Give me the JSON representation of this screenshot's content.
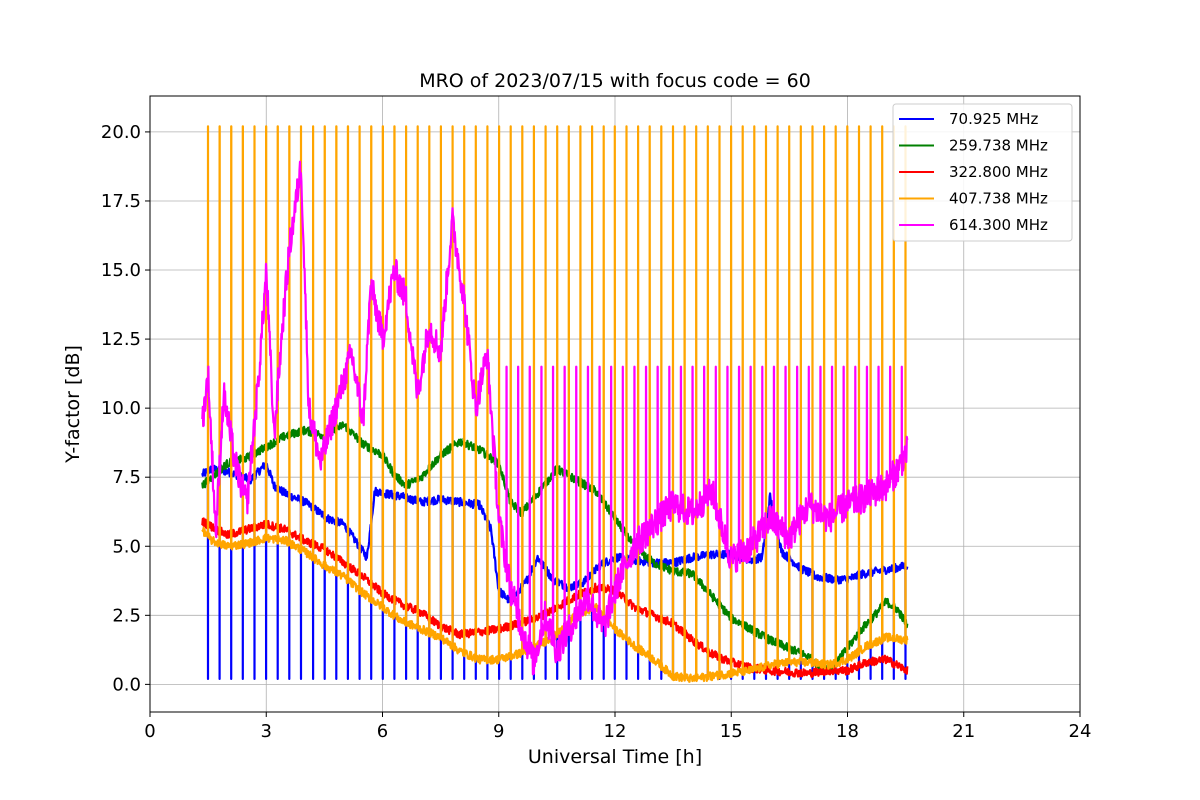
{
  "chart_data": {
    "type": "line",
    "title": "MRO of 2023/07/15 with focus code = 60",
    "xlabel": "Universal Time [h]",
    "ylabel": "Y-factor [dB]",
    "xlim": [
      0,
      24
    ],
    "ylim": [
      -1.0,
      21.3
    ],
    "x_ticks": [
      "0",
      "3",
      "6",
      "9",
      "12",
      "15",
      "18",
      "21",
      "24"
    ],
    "y_ticks": [
      "0.0",
      "2.5",
      "5.0",
      "7.5",
      "10.0",
      "12.5",
      "15.0",
      "17.5",
      "20.0"
    ],
    "grid": true,
    "legend_position": "top-right",
    "spike_interval_h": 0.3,
    "series": [
      {
        "name": " 70.925 MHz",
        "color": "#0000ff",
        "x": [
          1.35,
          1.6,
          2,
          2.6,
          3,
          3.2,
          3.5,
          4,
          4.6,
          5,
          5.3,
          5.6,
          5.8,
          6.1,
          6.5,
          7,
          7.5,
          8,
          8.5,
          8.8,
          9,
          9.3,
          9.7,
          10,
          10.4,
          10.8,
          11.2,
          11.6,
          12,
          12.5,
          13,
          13.5,
          14,
          14.5,
          15,
          15.5,
          15.8,
          16,
          16.3,
          16.8,
          17.2,
          17.7,
          18,
          18.4,
          18.8,
          19.2,
          19.55
        ],
        "y": [
          7.6,
          7.8,
          7.7,
          7.4,
          8.0,
          7.2,
          6.9,
          6.6,
          6.0,
          5.8,
          5.2,
          4.6,
          7.0,
          6.9,
          6.8,
          6.6,
          6.7,
          6.6,
          6.5,
          5.6,
          3.4,
          3.0,
          3.7,
          4.6,
          3.8,
          3.5,
          3.7,
          4.3,
          4.6,
          4.5,
          4.4,
          4.4,
          4.6,
          4.7,
          4.7,
          4.5,
          4.6,
          6.8,
          4.8,
          4.2,
          3.9,
          3.8,
          3.8,
          4.0,
          4.1,
          4.2,
          4.3
        ],
        "spike_low": 0.2,
        "spike_start": 1.5,
        "spike_end": 19.5
      },
      {
        "name": "259.738 MHz",
        "color": "#008000",
        "x": [
          1.35,
          1.6,
          2,
          2.5,
          3,
          3.5,
          4,
          4.5,
          5,
          5.5,
          6,
          6.3,
          6.6,
          7,
          7.5,
          8,
          8.5,
          9,
          9.3,
          9.6,
          10,
          10.5,
          11,
          11.5,
          12,
          12.5,
          13,
          13.5,
          14,
          14.5,
          15,
          15.5,
          16,
          16.5,
          17,
          17.3,
          17.6,
          18,
          18.3,
          18.7,
          19,
          19.3,
          19.55
        ],
        "y": [
          7.2,
          7.5,
          8.0,
          8.2,
          8.6,
          9.0,
          9.2,
          9.0,
          9.4,
          8.7,
          8.3,
          7.6,
          7.2,
          7.5,
          8.3,
          8.8,
          8.5,
          8.0,
          6.6,
          6.2,
          6.9,
          7.8,
          7.4,
          7.0,
          6.0,
          5.0,
          4.4,
          4.1,
          4.0,
          3.2,
          2.4,
          2.0,
          1.6,
          1.3,
          1.0,
          0.6,
          0.6,
          1.3,
          1.9,
          2.5,
          3.0,
          2.7,
          2.1
        ],
        "spike_low": null,
        "spike_start": null,
        "spike_end": null
      },
      {
        "name": "322.800 MHz",
        "color": "#ff0000",
        "x": [
          1.35,
          1.6,
          2,
          2.5,
          3,
          3.5,
          4,
          4.5,
          5,
          5.5,
          6,
          6.5,
          7,
          7.5,
          8,
          8.5,
          9,
          9.5,
          10,
          10.5,
          11,
          11.5,
          12,
          12.5,
          13,
          13.5,
          14,
          14.5,
          15,
          15.5,
          16,
          16.5,
          17,
          17.5,
          18,
          18.5,
          19,
          19.55
        ],
        "y": [
          5.9,
          5.7,
          5.4,
          5.6,
          5.8,
          5.6,
          5.2,
          4.9,
          4.4,
          3.9,
          3.3,
          2.9,
          2.6,
          2.1,
          1.8,
          1.9,
          2.0,
          2.2,
          2.4,
          2.8,
          3.2,
          3.5,
          3.4,
          2.8,
          2.5,
          2.2,
          1.6,
          1.1,
          0.8,
          0.6,
          0.5,
          0.45,
          0.4,
          0.5,
          0.5,
          0.8,
          0.9,
          0.5
        ],
        "spike_low": null,
        "spike_start": null,
        "spike_end": null
      },
      {
        "name": "407.738 MHz",
        "color": "#ffa500",
        "x": [
          1.35,
          1.6,
          2,
          2.5,
          3,
          3.5,
          4,
          4.5,
          5,
          5.5,
          6,
          6.5,
          7,
          7.5,
          8,
          8.5,
          9,
          9.5,
          10,
          10.5,
          11,
          11.5,
          12,
          12.5,
          13,
          13.5,
          14,
          14.5,
          15,
          15.5,
          16,
          16.5,
          17,
          17.5,
          18,
          18.5,
          19,
          19.55
        ],
        "y": [
          5.6,
          5.2,
          5.0,
          5.1,
          5.3,
          5.2,
          4.8,
          4.3,
          3.9,
          3.3,
          2.8,
          2.3,
          2.0,
          1.7,
          1.2,
          0.9,
          0.9,
          1.1,
          1.4,
          1.8,
          2.5,
          2.8,
          2.0,
          1.4,
          0.9,
          0.3,
          0.2,
          0.3,
          0.4,
          0.5,
          0.7,
          0.8,
          0.8,
          0.7,
          0.9,
          1.4,
          1.7,
          1.6
        ],
        "spike_low": null,
        "spike_start": 1.5,
        "spike_end": 19.5,
        "spike_high": 20.2,
        "secondary_high": 11.5
      },
      {
        "name": "614.300 MHz",
        "color": "#ff00ff",
        "x": [
          1.35,
          1.5,
          1.7,
          1.9,
          2.2,
          2.5,
          2.8,
          3.0,
          3.2,
          3.45,
          3.6,
          3.9,
          4.1,
          4.4,
          4.8,
          5.2,
          5.5,
          5.7,
          6.0,
          6.3,
          6.6,
          6.9,
          7.2,
          7.5,
          7.8,
          8.1,
          8.4,
          8.7,
          9.0,
          9.3,
          9.6,
          9.9,
          10.2,
          10.5,
          10.9,
          11.3,
          11.7,
          12.1,
          12.5,
          13.0,
          13.5,
          14.0,
          14.5,
          15.0,
          15.5,
          16.0,
          16.5,
          17.0,
          17.5,
          18.0,
          18.5,
          19.0,
          19.3,
          19.55
        ],
        "y": [
          9.5,
          11.2,
          5.5,
          10.5,
          8.0,
          6.5,
          11.0,
          15.0,
          9.0,
          13.5,
          15.8,
          18.8,
          10.0,
          8.0,
          10.0,
          12.0,
          9.5,
          14.5,
          12.5,
          15.0,
          14.0,
          10.5,
          13.0,
          12.0,
          16.8,
          14.0,
          10.0,
          12.0,
          6.0,
          3.5,
          2.0,
          0.8,
          2.5,
          1.2,
          2.2,
          3.2,
          2.0,
          3.8,
          5.0,
          5.8,
          6.5,
          6.2,
          7.0,
          4.5,
          5.0,
          6.0,
          5.3,
          6.5,
          6.0,
          6.5,
          6.8,
          7.2,
          7.8,
          8.5
        ],
        "spike_low": null,
        "spike_start": 9.2,
        "spike_end": 19.5,
        "spike_high": 11.5
      }
    ]
  }
}
